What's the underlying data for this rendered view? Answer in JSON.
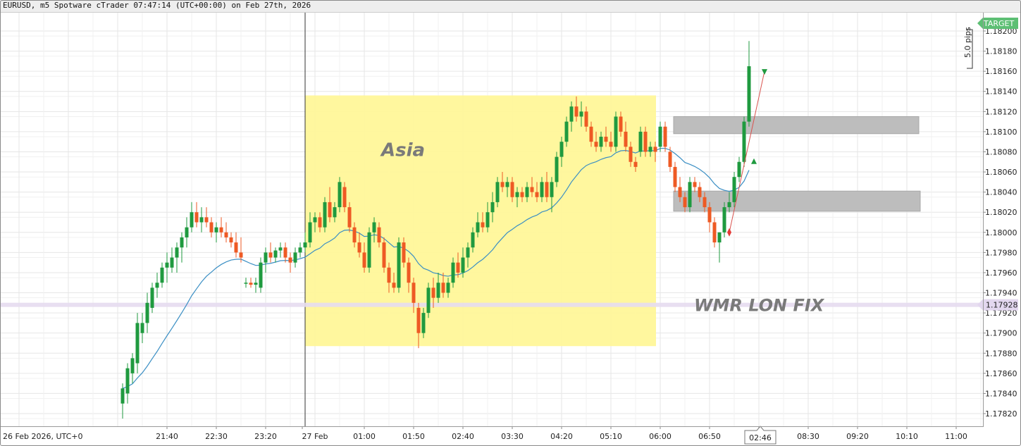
{
  "window": {
    "title": "EURUSD, m5 Spotware cTrader 07:47:14 (UTC+00:00) on Feb 27th, 2026"
  },
  "colors": {
    "bull": "#1f9a3f",
    "bear": "#ee5a24",
    "ema": "#3b8fc4",
    "asia_box": "#fff799",
    "zone": "#bdbdbd",
    "fix_line": "#e6dcf0",
    "target": "#5dbf74",
    "grid": "#e6e6e6"
  },
  "chart_data": {
    "type": "candlestick",
    "symbol": "EURUSD",
    "timeframe": "m5",
    "ylim": [
      1.1781,
      1.18225
    ],
    "y_ticks": [
      1.1782,
      1.1784,
      1.1786,
      1.1788,
      1.179,
      1.1792,
      1.1794,
      1.1796,
      1.1798,
      1.18,
      1.1802,
      1.1804,
      1.1806,
      1.1808,
      1.181,
      1.1812,
      1.1814,
      1.1816,
      1.1818,
      1.182
    ],
    "y_tick_labels": [
      "1.17820",
      "1.17840",
      "1.17860",
      "1.17880",
      "1.17900",
      "1.17920",
      "1.17940",
      "1.17960",
      "1.17980",
      "1.18000",
      "1.18020",
      "1.18040",
      "1.18060",
      "1.18080",
      "1.18100",
      "1.18120",
      "1.18140",
      "1.18160",
      "1.18180",
      "1.18200"
    ],
    "x_ticks": [
      "26 Feb 2026, UTC+0",
      "21:40",
      "22:30",
      "23:20",
      "27 Feb",
      "01:00",
      "01:50",
      "02:40",
      "03:30",
      "04:20",
      "05:10",
      "06:00",
      "06:50",
      "07:40",
      "08:30",
      "09:20",
      "10:10",
      "11:00"
    ],
    "candles": [
      {
        "t": "20:55",
        "o": 1.1783,
        "h": 1.1785,
        "l": 1.17815,
        "c": 1.17845
      },
      {
        "t": "21:00",
        "o": 1.1784,
        "h": 1.1787,
        "l": 1.1783,
        "c": 1.17865
      },
      {
        "t": "21:05",
        "o": 1.1786,
        "h": 1.1788,
        "l": 1.1785,
        "c": 1.17875
      },
      {
        "t": "21:10",
        "o": 1.1787,
        "h": 1.1792,
        "l": 1.1786,
        "c": 1.1791
      },
      {
        "t": "21:15",
        "o": 1.179,
        "h": 1.1792,
        "l": 1.1789,
        "c": 1.1791
      },
      {
        "t": "21:20",
        "o": 1.1791,
        "h": 1.1794,
        "l": 1.179,
        "c": 1.1793
      },
      {
        "t": "21:25",
        "o": 1.17925,
        "h": 1.1795,
        "l": 1.1792,
        "c": 1.17945
      },
      {
        "t": "21:30",
        "o": 1.17945,
        "h": 1.1796,
        "l": 1.17935,
        "c": 1.1795
      },
      {
        "t": "21:35",
        "o": 1.1795,
        "h": 1.1797,
        "l": 1.17945,
        "c": 1.17965
      },
      {
        "t": "21:40",
        "o": 1.17965,
        "h": 1.1798,
        "l": 1.1795,
        "c": 1.1797
      },
      {
        "t": "21:45",
        "o": 1.17965,
        "h": 1.17985,
        "l": 1.1796,
        "c": 1.17975
      },
      {
        "t": "21:50",
        "o": 1.17975,
        "h": 1.1799,
        "l": 1.1796,
        "c": 1.17985
      },
      {
        "t": "21:55",
        "o": 1.17985,
        "h": 1.18,
        "l": 1.1797,
        "c": 1.17995
      },
      {
        "t": "22:00",
        "o": 1.17995,
        "h": 1.18015,
        "l": 1.17985,
        "c": 1.18005
      },
      {
        "t": "22:05",
        "o": 1.18005,
        "h": 1.1803,
        "l": 1.18,
        "c": 1.1802
      },
      {
        "t": "22:10",
        "o": 1.1802,
        "h": 1.1803,
        "l": 1.18005,
        "c": 1.1801
      },
      {
        "t": "22:15",
        "o": 1.1801,
        "h": 1.18025,
        "l": 1.18,
        "c": 1.18015
      },
      {
        "t": "22:20",
        "o": 1.18015,
        "h": 1.18025,
        "l": 1.18005,
        "c": 1.1801
      },
      {
        "t": "22:25",
        "o": 1.1801,
        "h": 1.18015,
        "l": 1.17995,
        "c": 1.18
      },
      {
        "t": "22:30",
        "o": 1.18,
        "h": 1.1801,
        "l": 1.1799,
        "c": 1.18005
      },
      {
        "t": "22:35",
        "o": 1.18005,
        "h": 1.18015,
        "l": 1.17995,
        "c": 1.18
      },
      {
        "t": "22:40",
        "o": 1.18,
        "h": 1.1801,
        "l": 1.1799,
        "c": 1.17995
      },
      {
        "t": "22:45",
        "o": 1.17995,
        "h": 1.18,
        "l": 1.17985,
        "c": 1.1799
      },
      {
        "t": "22:50",
        "o": 1.1799,
        "h": 1.18,
        "l": 1.17975,
        "c": 1.1798
      },
      {
        "t": "22:55",
        "o": 1.1798,
        "h": 1.17995,
        "l": 1.1797,
        "c": 1.17975
      },
      {
        "t": "23:00",
        "o": 1.1795,
        "h": 1.17955,
        "l": 1.17945,
        "c": 1.1795
      },
      {
        "t": "23:05",
        "o": 1.1795,
        "h": 1.17955,
        "l": 1.17945,
        "c": 1.17948
      },
      {
        "t": "23:10",
        "o": 1.17948,
        "h": 1.17955,
        "l": 1.1794,
        "c": 1.1795
      },
      {
        "t": "23:15",
        "o": 1.17945,
        "h": 1.17975,
        "l": 1.1794,
        "c": 1.1797
      },
      {
        "t": "23:20",
        "o": 1.1797,
        "h": 1.17985,
        "l": 1.1796,
        "c": 1.1798
      },
      {
        "t": "23:25",
        "o": 1.1798,
        "h": 1.1799,
        "l": 1.1797,
        "c": 1.17975
      },
      {
        "t": "23:30",
        "o": 1.17975,
        "h": 1.17985,
        "l": 1.1797,
        "c": 1.17982
      },
      {
        "t": "23:35",
        "o": 1.17982,
        "h": 1.1799,
        "l": 1.17975,
        "c": 1.17985
      },
      {
        "t": "23:40",
        "o": 1.17985,
        "h": 1.1799,
        "l": 1.1797,
        "c": 1.17975
      },
      {
        "t": "23:45",
        "o": 1.17975,
        "h": 1.1798,
        "l": 1.1796,
        "c": 1.1797
      },
      {
        "t": "23:50",
        "o": 1.1797,
        "h": 1.17985,
        "l": 1.17965,
        "c": 1.1798
      },
      {
        "t": "23:55",
        "o": 1.1798,
        "h": 1.1799,
        "l": 1.17975,
        "c": 1.17985
      },
      {
        "t": "00:00",
        "o": 1.17985,
        "h": 1.18,
        "l": 1.1798,
        "c": 1.1799
      },
      {
        "t": "00:05",
        "o": 1.1799,
        "h": 1.1802,
        "l": 1.17985,
        "c": 1.1801
      },
      {
        "t": "00:10",
        "o": 1.1801,
        "h": 1.1802,
        "l": 1.18,
        "c": 1.18015
      },
      {
        "t": "00:15",
        "o": 1.18015,
        "h": 1.1802,
        "l": 1.18,
        "c": 1.18005
      },
      {
        "t": "00:20",
        "o": 1.18005,
        "h": 1.18035,
        "l": 1.18,
        "c": 1.1803
      },
      {
        "t": "00:25",
        "o": 1.1803,
        "h": 1.18045,
        "l": 1.1801,
        "c": 1.18015
      },
      {
        "t": "00:30",
        "o": 1.18015,
        "h": 1.1803,
        "l": 1.1801,
        "c": 1.18025
      },
      {
        "t": "00:35",
        "o": 1.18025,
        "h": 1.18055,
        "l": 1.1802,
        "c": 1.1805
      },
      {
        "t": "00:40",
        "o": 1.18045,
        "h": 1.1805,
        "l": 1.1802,
        "c": 1.18025
      },
      {
        "t": "00:45",
        "o": 1.18025,
        "h": 1.1803,
        "l": 1.18,
        "c": 1.18005
      },
      {
        "t": "00:50",
        "o": 1.18005,
        "h": 1.1801,
        "l": 1.17985,
        "c": 1.1799
      },
      {
        "t": "00:55",
        "o": 1.1799,
        "h": 1.18,
        "l": 1.17975,
        "c": 1.1798
      },
      {
        "t": "01:00",
        "o": 1.1798,
        "h": 1.1799,
        "l": 1.1796,
        "c": 1.17965
      },
      {
        "t": "01:05",
        "o": 1.17965,
        "h": 1.18005,
        "l": 1.1796,
        "c": 1.18
      },
      {
        "t": "01:10",
        "o": 1.18,
        "h": 1.18015,
        "l": 1.1799,
        "c": 1.1801
      },
      {
        "t": "01:15",
        "o": 1.18005,
        "h": 1.1801,
        "l": 1.17985,
        "c": 1.1799
      },
      {
        "t": "01:20",
        "o": 1.1799,
        "h": 1.17995,
        "l": 1.1796,
        "c": 1.17965
      },
      {
        "t": "01:25",
        "o": 1.17965,
        "h": 1.1797,
        "l": 1.1794,
        "c": 1.1795
      },
      {
        "t": "01:30",
        "o": 1.1795,
        "h": 1.1796,
        "l": 1.1794,
        "c": 1.17945
      },
      {
        "t": "01:35",
        "o": 1.17945,
        "h": 1.17995,
        "l": 1.1794,
        "c": 1.1799
      },
      {
        "t": "01:40",
        "o": 1.1799,
        "h": 1.17995,
        "l": 1.17965,
        "c": 1.1797
      },
      {
        "t": "01:45",
        "o": 1.1797,
        "h": 1.17975,
        "l": 1.1794,
        "c": 1.1795
      },
      {
        "t": "01:50",
        "o": 1.1795,
        "h": 1.17955,
        "l": 1.1792,
        "c": 1.1793
      },
      {
        "t": "01:55",
        "o": 1.17925,
        "h": 1.1793,
        "l": 1.17885,
        "c": 1.179
      },
      {
        "t": "02:00",
        "o": 1.179,
        "h": 1.17925,
        "l": 1.17895,
        "c": 1.1792
      },
      {
        "t": "02:05",
        "o": 1.1792,
        "h": 1.1795,
        "l": 1.17915,
        "c": 1.17945
      },
      {
        "t": "02:10",
        "o": 1.17945,
        "h": 1.17955,
        "l": 1.17925,
        "c": 1.17935
      },
      {
        "t": "02:15",
        "o": 1.17935,
        "h": 1.1796,
        "l": 1.1793,
        "c": 1.1795
      },
      {
        "t": "02:20",
        "o": 1.1795,
        "h": 1.1796,
        "l": 1.17935,
        "c": 1.1794
      },
      {
        "t": "02:25",
        "o": 1.1794,
        "h": 1.17955,
        "l": 1.17935,
        "c": 1.1795
      },
      {
        "t": "02:30",
        "o": 1.1795,
        "h": 1.17975,
        "l": 1.17945,
        "c": 1.1797
      },
      {
        "t": "02:35",
        "o": 1.1797,
        "h": 1.1798,
        "l": 1.17955,
        "c": 1.1796
      },
      {
        "t": "02:40",
        "o": 1.1796,
        "h": 1.17985,
        "l": 1.17955,
        "c": 1.17975
      },
      {
        "t": "02:45",
        "o": 1.17975,
        "h": 1.1799,
        "l": 1.17965,
        "c": 1.17985
      },
      {
        "t": "02:50",
        "o": 1.17985,
        "h": 1.18005,
        "l": 1.1798,
        "c": 1.18
      },
      {
        "t": "02:55",
        "o": 1.18,
        "h": 1.1802,
        "l": 1.17995,
        "c": 1.1801
      },
      {
        "t": "03:00",
        "o": 1.1801,
        "h": 1.1802,
        "l": 1.18,
        "c": 1.18005
      },
      {
        "t": "03:05",
        "o": 1.18005,
        "h": 1.1803,
        "l": 1.18,
        "c": 1.1802
      },
      {
        "t": "03:10",
        "o": 1.1802,
        "h": 1.1804,
        "l": 1.1801,
        "c": 1.1803
      },
      {
        "t": "03:15",
        "o": 1.1803,
        "h": 1.18055,
        "l": 1.18025,
        "c": 1.1805
      },
      {
        "t": "03:20",
        "o": 1.1805,
        "h": 1.1806,
        "l": 1.1804,
        "c": 1.18045
      },
      {
        "t": "03:25",
        "o": 1.18045,
        "h": 1.18055,
        "l": 1.18035,
        "c": 1.1805
      },
      {
        "t": "03:30",
        "o": 1.1805,
        "h": 1.18055,
        "l": 1.1803,
        "c": 1.18035
      },
      {
        "t": "03:35",
        "o": 1.18035,
        "h": 1.18045,
        "l": 1.18025,
        "c": 1.1804
      },
      {
        "t": "03:40",
        "o": 1.1804,
        "h": 1.18045,
        "l": 1.1803,
        "c": 1.18035
      },
      {
        "t": "03:45",
        "o": 1.18035,
        "h": 1.1805,
        "l": 1.1803,
        "c": 1.18045
      },
      {
        "t": "03:50",
        "o": 1.18045,
        "h": 1.18055,
        "l": 1.18035,
        "c": 1.1804
      },
      {
        "t": "03:55",
        "o": 1.1804,
        "h": 1.1805,
        "l": 1.1803,
        "c": 1.18035
      },
      {
        "t": "04:00",
        "o": 1.18035,
        "h": 1.18055,
        "l": 1.1803,
        "c": 1.1805
      },
      {
        "t": "04:05",
        "o": 1.1805,
        "h": 1.1806,
        "l": 1.1803,
        "c": 1.18035
      },
      {
        "t": "04:10",
        "o": 1.18035,
        "h": 1.18055,
        "l": 1.1802,
        "c": 1.1805
      },
      {
        "t": "04:15",
        "o": 1.1805,
        "h": 1.1808,
        "l": 1.18045,
        "c": 1.18075
      },
      {
        "t": "04:20",
        "o": 1.18075,
        "h": 1.18095,
        "l": 1.18065,
        "c": 1.1809
      },
      {
        "t": "04:25",
        "o": 1.1809,
        "h": 1.18115,
        "l": 1.18085,
        "c": 1.1811
      },
      {
        "t": "04:30",
        "o": 1.1811,
        "h": 1.1813,
        "l": 1.181,
        "c": 1.18125
      },
      {
        "t": "04:35",
        "o": 1.18125,
        "h": 1.18135,
        "l": 1.1811,
        "c": 1.18115
      },
      {
        "t": "04:40",
        "o": 1.18115,
        "h": 1.1813,
        "l": 1.18105,
        "c": 1.1812
      },
      {
        "t": "04:45",
        "o": 1.1812,
        "h": 1.18125,
        "l": 1.181,
        "c": 1.18105
      },
      {
        "t": "04:50",
        "o": 1.18105,
        "h": 1.1811,
        "l": 1.18085,
        "c": 1.1809
      },
      {
        "t": "04:55",
        "o": 1.1809,
        "h": 1.181,
        "l": 1.1808,
        "c": 1.18085
      },
      {
        "t": "05:00",
        "o": 1.18085,
        "h": 1.181,
        "l": 1.1808,
        "c": 1.18095
      },
      {
        "t": "05:05",
        "o": 1.18095,
        "h": 1.18105,
        "l": 1.18085,
        "c": 1.1809
      },
      {
        "t": "05:10",
        "o": 1.1809,
        "h": 1.181,
        "l": 1.1808,
        "c": 1.18085
      },
      {
        "t": "05:15",
        "o": 1.18085,
        "h": 1.1812,
        "l": 1.1808,
        "c": 1.18115
      },
      {
        "t": "05:20",
        "o": 1.18115,
        "h": 1.1812,
        "l": 1.18095,
        "c": 1.181
      },
      {
        "t": "05:25",
        "o": 1.181,
        "h": 1.1811,
        "l": 1.1808,
        "c": 1.18085
      },
      {
        "t": "05:30",
        "o": 1.18085,
        "h": 1.1809,
        "l": 1.18065,
        "c": 1.1807
      },
      {
        "t": "05:35",
        "o": 1.1807,
        "h": 1.18075,
        "l": 1.1806,
        "c": 1.18065
      },
      {
        "t": "05:40",
        "o": 1.1808,
        "h": 1.18105,
        "l": 1.18075,
        "c": 1.181
      },
      {
        "t": "05:45",
        "o": 1.181,
        "h": 1.18105,
        "l": 1.18075,
        "c": 1.1808
      },
      {
        "t": "05:50",
        "o": 1.1808,
        "h": 1.1809,
        "l": 1.18075,
        "c": 1.18085
      },
      {
        "t": "05:55",
        "o": 1.18085,
        "h": 1.1809,
        "l": 1.1807,
        "c": 1.1808
      },
      {
        "t": "06:00",
        "o": 1.18085,
        "h": 1.1811,
        "l": 1.1808,
        "c": 1.18105
      },
      {
        "t": "06:05",
        "o": 1.18105,
        "h": 1.1811,
        "l": 1.1808,
        "c": 1.18085
      },
      {
        "t": "06:10",
        "o": 1.1808,
        "h": 1.18085,
        "l": 1.1806,
        "c": 1.18065
      },
      {
        "t": "06:15",
        "o": 1.18065,
        "h": 1.1807,
        "l": 1.1804,
        "c": 1.18045
      },
      {
        "t": "06:20",
        "o": 1.18045,
        "h": 1.18055,
        "l": 1.1803,
        "c": 1.18035
      },
      {
        "t": "06:25",
        "o": 1.18035,
        "h": 1.1804,
        "l": 1.1802,
        "c": 1.18025
      },
      {
        "t": "06:30",
        "o": 1.18025,
        "h": 1.18055,
        "l": 1.1802,
        "c": 1.1805
      },
      {
        "t": "06:35",
        "o": 1.1805,
        "h": 1.18055,
        "l": 1.1804,
        "c": 1.18045
      },
      {
        "t": "06:40",
        "o": 1.18045,
        "h": 1.1805,
        "l": 1.1803,
        "c": 1.18035
      },
      {
        "t": "06:45",
        "o": 1.18035,
        "h": 1.1804,
        "l": 1.1802,
        "c": 1.18025
      },
      {
        "t": "06:50",
        "o": 1.18025,
        "h": 1.1803,
        "l": 1.18,
        "c": 1.1801
      },
      {
        "t": "06:55",
        "o": 1.1801,
        "h": 1.18015,
        "l": 1.17985,
        "c": 1.1799
      },
      {
        "t": "07:00",
        "o": 1.1799,
        "h": 1.18,
        "l": 1.1797,
        "c": 1.18
      },
      {
        "t": "07:05",
        "o": 1.18,
        "h": 1.1803,
        "l": 1.17995,
        "c": 1.18025
      },
      {
        "t": "07:10",
        "o": 1.18025,
        "h": 1.1804,
        "l": 1.1802,
        "c": 1.1803
      },
      {
        "t": "07:15",
        "o": 1.1803,
        "h": 1.1806,
        "l": 1.18025,
        "c": 1.18055
      },
      {
        "t": "07:20",
        "o": 1.18055,
        "h": 1.18075,
        "l": 1.1805,
        "c": 1.1807
      },
      {
        "t": "07:25",
        "o": 1.1807,
        "h": 1.18115,
        "l": 1.18065,
        "c": 1.1811
      },
      {
        "t": "07:30",
        "o": 1.1811,
        "h": 1.1819,
        "l": 1.18105,
        "c": 1.18165
      }
    ],
    "ema_label": "",
    "annotations": {
      "asia_label": "Asia",
      "fix_label": "WMR LON FIX",
      "fix_price": 1.17928,
      "fix_price_label": "1.17928",
      "target_label": "TARGET",
      "pips_label": "5.0 pips",
      "upper_zone": [
        1.18098,
        1.18115
      ],
      "lower_zone": [
        1.18021,
        1.18041
      ],
      "asia_range": [
        1.17887,
        1.18136
      ],
      "crosshair_time_label": "02:46",
      "session_start_marker": "27 Feb"
    }
  }
}
